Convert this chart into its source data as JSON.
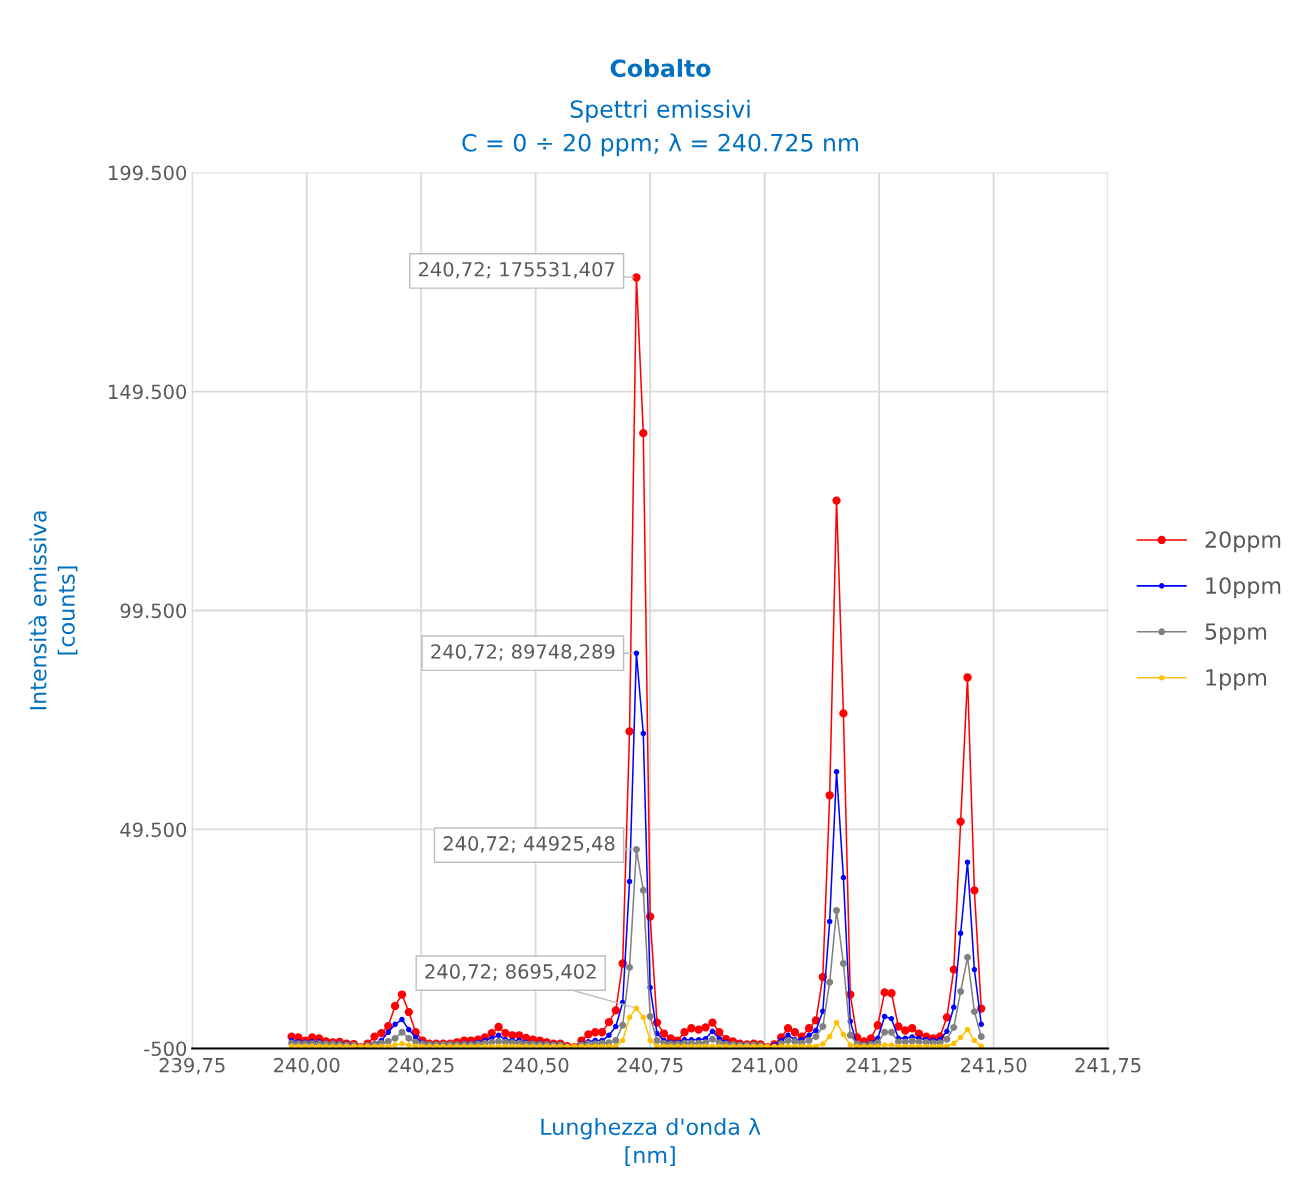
{
  "chart_data": {
    "type": "line",
    "title": "Cobalto",
    "subtitle": "Spettri emissivi\nC = 0 ÷ 20 ppm; λ = 240.725 nm",
    "xlabel": "Lunghezza d'onda λ\n[nm]",
    "ylabel": "Intensità emissiva\n[counts]",
    "x": [
      239.967,
      239.982,
      239.997,
      240.012,
      240.027,
      240.042,
      240.057,
      240.072,
      240.087,
      240.103,
      240.118,
      240.133,
      240.148,
      240.163,
      240.178,
      240.193,
      240.208,
      240.223,
      240.238,
      240.253,
      240.268,
      240.283,
      240.298,
      240.313,
      240.328,
      240.344,
      240.359,
      240.374,
      240.389,
      240.404,
      240.419,
      240.434,
      240.449,
      240.464,
      240.479,
      240.494,
      240.509,
      240.524,
      240.539,
      240.554,
      240.569,
      240.585,
      240.6,
      240.615,
      240.63,
      240.645,
      240.66,
      240.675,
      240.69,
      240.705,
      240.72,
      240.735,
      240.75,
      240.765,
      240.78,
      240.795,
      240.81,
      240.825,
      240.84,
      240.856,
      240.871,
      240.886,
      240.901,
      240.916,
      240.931,
      240.946,
      240.961,
      240.976,
      240.991,
      241.006,
      241.021,
      241.036,
      241.051,
      241.066,
      241.081,
      241.097,
      241.112,
      241.127,
      241.142,
      241.157,
      241.172,
      241.187,
      241.202,
      241.217,
      241.232,
      241.247,
      241.262,
      241.277,
      241.292,
      241.307,
      241.322,
      241.337,
      241.353,
      241.368,
      241.383,
      241.398,
      241.413,
      241.428,
      241.443,
      241.458,
      241.473
    ],
    "series": [
      {
        "name": "20ppm",
        "color": "#ff0000",
        "values": [
          2200,
          2000,
          1300,
          2000,
          1800,
          1100,
          900,
          1000,
          600,
          500,
          -200,
          600,
          2200,
          3000,
          4600,
          9200,
          11800,
          7800,
          3200,
          1300,
          600,
          600,
          600,
          600,
          900,
          1300,
          1300,
          1500,
          2000,
          3000,
          4400,
          3000,
          2500,
          2500,
          1900,
          1500,
          1300,
          900,
          600,
          600,
          0,
          -200,
          1300,
          2700,
          3200,
          3200,
          5500,
          8200,
          18900,
          71900,
          175531.407,
          140000,
          29600,
          5400,
          2900,
          1800,
          1300,
          3200,
          4100,
          3800,
          4300,
          5400,
          3200,
          1600,
          1100,
          600,
          400,
          600,
          400,
          -200,
          400,
          2000,
          4100,
          3200,
          2200,
          4100,
          5900,
          15800,
          57300,
          124600,
          76000,
          11800,
          2000,
          1100,
          1800,
          4800,
          12300,
          12100,
          4500,
          3600,
          4100,
          2900,
          2200,
          1800,
          2200,
          6600,
          17500,
          51300,
          84200,
          35600,
          8600
        ]
      },
      {
        "name": "10ppm",
        "color": "#0000ff",
        "values": [
          1300,
          1000,
          900,
          1000,
          1000,
          700,
          700,
          700,
          500,
          400,
          -200,
          300,
          600,
          1300,
          3200,
          5000,
          6100,
          3800,
          2000,
          900,
          500,
          500,
          500,
          500,
          500,
          700,
          700,
          900,
          1300,
          1800,
          2500,
          1500,
          1300,
          1300,
          900,
          700,
          700,
          600,
          500,
          400,
          0,
          -200,
          600,
          1000,
          1300,
          1300,
          2500,
          4500,
          10000,
          37600,
          89748.289,
          71400,
          13400,
          2900,
          1300,
          900,
          900,
          1500,
          1500,
          1500,
          1700,
          3400,
          1700,
          900,
          500,
          500,
          400,
          400,
          300,
          -300,
          300,
          1300,
          2500,
          1500,
          1500,
          2500,
          3600,
          8000,
          28500,
          62700,
          38500,
          5700,
          200,
          500,
          700,
          1800,
          6800,
          6300,
          1800,
          1800,
          2100,
          1800,
          1500,
          1300,
          1500,
          3400,
          8900,
          25800,
          42000,
          17500,
          5000
        ]
      },
      {
        "name": "5ppm",
        "color": "#808080",
        "values": [
          700,
          600,
          600,
          600,
          600,
          500,
          500,
          400,
          300,
          300,
          -300,
          200,
          400,
          700,
          1100,
          1800,
          3200,
          1800,
          1000,
          600,
          400,
          400,
          400,
          400,
          400,
          400,
          400,
          500,
          700,
          900,
          1100,
          900,
          800,
          700,
          500,
          500,
          400,
          400,
          300,
          300,
          -200,
          -500,
          300,
          500,
          600,
          700,
          800,
          1300,
          4800,
          18000,
          44925.48,
          35600,
          6800,
          1300,
          700,
          500,
          500,
          700,
          700,
          700,
          800,
          1600,
          800,
          500,
          400,
          300,
          300,
          300,
          200,
          -500,
          -300,
          600,
          1300,
          1100,
          700,
          1300,
          2200,
          4500,
          14600,
          31000,
          18900,
          2500,
          500,
          300,
          400,
          800,
          3200,
          3200,
          1000,
          1000,
          1200,
          1000,
          900,
          800,
          800,
          1600,
          4300,
          12500,
          20300,
          7900,
          2200
        ]
      },
      {
        "name": "1ppm",
        "color": "#ffc000",
        "values": [
          0,
          0,
          0,
          0,
          0,
          0,
          0,
          0,
          0,
          0,
          0,
          0,
          0,
          0,
          0,
          300,
          600,
          300,
          0,
          0,
          0,
          0,
          0,
          0,
          0,
          0,
          0,
          0,
          0,
          0,
          0,
          0,
          0,
          0,
          0,
          0,
          0,
          0,
          0,
          0,
          0,
          0,
          0,
          0,
          0,
          0,
          0,
          0,
          1300,
          6600,
          8695.402,
          6600,
          1300,
          0,
          0,
          0,
          0,
          0,
          0,
          0,
          0,
          0,
          0,
          0,
          0,
          0,
          0,
          0,
          0,
          0,
          0,
          0,
          0,
          0,
          0,
          0,
          0,
          500,
          2200,
          5400,
          2700,
          300,
          0,
          0,
          0,
          0,
          300,
          300,
          0,
          0,
          0,
          0,
          0,
          0,
          0,
          0,
          600,
          2000,
          3800,
          1300,
          0
        ]
      }
    ],
    "value_labels": [
      [
        null,
        null,
        null,
        null,
        null,
        null,
        null,
        null,
        null,
        null,
        null,
        null,
        null,
        null,
        null,
        null,
        null,
        null,
        null,
        null,
        null,
        null,
        null,
        null,
        null,
        null,
        null,
        null,
        null,
        null,
        null,
        null,
        null,
        null,
        null,
        null,
        null,
        null,
        null,
        null,
        null,
        null,
        null,
        null,
        null,
        null,
        null,
        null,
        null,
        null,
        "240,72; 175531,407",
        null,
        null,
        null,
        null,
        null,
        null,
        null,
        null,
        null,
        null,
        null,
        null,
        null,
        null,
        null,
        null,
        null,
        null,
        null,
        null,
        null,
        null,
        null,
        null,
        null,
        null,
        null,
        null,
        null,
        null,
        null,
        null,
        null,
        null,
        null,
        null,
        null,
        null,
        null,
        null,
        null,
        null,
        null,
        null,
        null,
        null,
        null,
        null,
        null,
        null
      ],
      [
        null,
        null,
        null,
        null,
        null,
        null,
        null,
        null,
        null,
        null,
        null,
        null,
        null,
        null,
        null,
        null,
        null,
        null,
        null,
        null,
        null,
        null,
        null,
        null,
        null,
        null,
        null,
        null,
        null,
        null,
        null,
        null,
        null,
        null,
        null,
        null,
        null,
        null,
        null,
        null,
        null,
        null,
        null,
        null,
        null,
        null,
        null,
        null,
        null,
        null,
        "240,72; 89748,289",
        null,
        null,
        null,
        null,
        null,
        null,
        null,
        null,
        null,
        null,
        null,
        null,
        null,
        null,
        null,
        null,
        null,
        null,
        null,
        null,
        null,
        null,
        null,
        null,
        null,
        null,
        null,
        null,
        null,
        null,
        null,
        null,
        null,
        null,
        null,
        null,
        null,
        null,
        null,
        null,
        null,
        null,
        null,
        null,
        null,
        null,
        null,
        null,
        null,
        null
      ],
      [
        null,
        null,
        null,
        null,
        null,
        null,
        null,
        null,
        null,
        null,
        null,
        null,
        null,
        null,
        null,
        null,
        null,
        null,
        null,
        null,
        null,
        null,
        null,
        null,
        null,
        null,
        null,
        null,
        null,
        null,
        null,
        null,
        null,
        null,
        null,
        null,
        null,
        null,
        null,
        null,
        null,
        null,
        null,
        null,
        null,
        null,
        null,
        null,
        null,
        null,
        "240,72; 44925,48",
        null,
        null,
        null,
        null,
        null,
        null,
        null,
        null,
        null,
        null,
        null,
        null,
        null,
        null,
        null,
        null,
        null,
        null,
        null,
        null,
        null,
        null,
        null,
        null,
        null,
        null,
        null,
        null,
        null,
        null,
        null,
        null,
        null,
        null,
        null,
        null,
        null,
        null,
        null,
        null,
        null,
        null,
        null,
        null,
        null,
        null,
        null,
        null,
        null,
        null
      ],
      [
        null,
        null,
        null,
        null,
        null,
        null,
        null,
        null,
        null,
        null,
        null,
        null,
        null,
        null,
        null,
        null,
        null,
        null,
        null,
        null,
        null,
        null,
        null,
        null,
        null,
        null,
        null,
        null,
        null,
        null,
        null,
        null,
        null,
        null,
        null,
        null,
        null,
        null,
        null,
        null,
        null,
        null,
        null,
        null,
        null,
        null,
        null,
        null,
        null,
        null,
        "240,72; 8695,402",
        null,
        null,
        null,
        null,
        null,
        null,
        null,
        null,
        null,
        null,
        null,
        null,
        null,
        null,
        null,
        null,
        null,
        null,
        null,
        null,
        null,
        null,
        null,
        null,
        null,
        null,
        null,
        null,
        null,
        null,
        null,
        null,
        null,
        null,
        null,
        null,
        null,
        null,
        null,
        null,
        null,
        null,
        null,
        null,
        null,
        null,
        null,
        null,
        null,
        null
      ]
    ],
    "xlim": [
      239.75,
      241.75
    ],
    "xticks": [
      {
        "value": 239.75,
        "label": "239,75"
      },
      {
        "value": 240.0,
        "label": "240,00"
      },
      {
        "value": 240.25,
        "label": "240,25"
      },
      {
        "value": 240.5,
        "label": "240,50"
      },
      {
        "value": 240.75,
        "label": "240,75"
      },
      {
        "value": 241.0,
        "label": "241,00"
      },
      {
        "value": 241.25,
        "label": "241,25"
      },
      {
        "value": 241.5,
        "label": "241,50"
      },
      {
        "value": 241.75,
        "label": "241,75"
      }
    ],
    "ylim": [
      -500,
      199500
    ],
    "yticks": [
      {
        "value": -500,
        "label": "-500"
      },
      {
        "value": 49500,
        "label": "49.500"
      },
      {
        "value": 99500,
        "label": "99.500"
      },
      {
        "value": 149500,
        "label": "149.500"
      },
      {
        "value": 199500,
        "label": "199.500"
      }
    ],
    "grid": true,
    "legend": "right",
    "marker": "circle",
    "line_style": "solid"
  }
}
